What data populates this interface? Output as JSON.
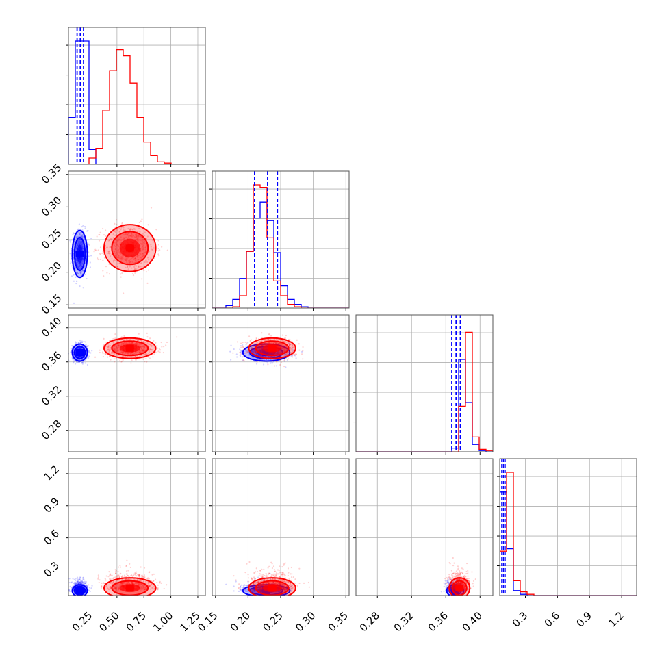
{
  "chart_data": {
    "type": "corner",
    "figure_size_px": 970,
    "colors": {
      "series_a": "#0000ff",
      "series_b": "#ff0000",
      "grid": "#b0b0b0",
      "frame": "#555555"
    },
    "legend": "none",
    "grid": true,
    "params": [
      {
        "range": [
          0.05,
          1.32
        ],
        "ticks": [
          "0.25",
          "0.50",
          "0.75",
          "1.00",
          "1.25"
        ],
        "tick_values": [
          0.25,
          0.5,
          0.75,
          1.0,
          1.25
        ]
      },
      {
        "range": [
          0.145,
          0.355
        ],
        "ticks": [
          "0.15",
          "0.20",
          "0.25",
          "0.30",
          "0.35"
        ],
        "tick_values": [
          0.15,
          0.2,
          0.25,
          0.3,
          0.35
        ]
      },
      {
        "range": [
          0.255,
          0.415
        ],
        "ticks": [
          "0.28",
          "0.32",
          "0.36",
          "0.40"
        ],
        "tick_values": [
          0.28,
          0.32,
          0.36,
          0.4
        ]
      },
      {
        "range": [
          0.06,
          1.34
        ],
        "ticks": [
          "0.3",
          "0.6",
          "0.9",
          "1.2"
        ],
        "tick_values": [
          0.3,
          0.6,
          0.9,
          1.2
        ]
      }
    ],
    "quantiles": {
      "blue": [
        [
          0.13,
          0.16,
          0.19
        ],
        [
          0.21,
          0.23,
          0.245
        ],
        [
          0.367,
          0.372,
          0.377
        ],
        [
          0.08,
          0.095,
          0.11
        ]
      ]
    },
    "series": [
      {
        "name": "",
        "color": "#0000ff",
        "means": [
          0.155,
          0.228,
          0.371,
          0.105
        ],
        "sds": [
          0.035,
          0.018,
          0.005,
          0.035
        ]
      },
      {
        "name": "",
        "color": "#ff0000",
        "means": [
          0.62,
          0.237,
          0.376,
          0.13
        ],
        "sds": [
          0.12,
          0.018,
          0.006,
          0.06
        ]
      }
    ],
    "histograms": [
      {
        "edges_range": [
          0.05,
          1.32
        ],
        "bins": 20,
        "blue": [
          0.38,
          1.0,
          1.0,
          0.12,
          0,
          0,
          0,
          0,
          0,
          0,
          0,
          0,
          0,
          0,
          0,
          0,
          0,
          0,
          0,
          0
        ],
        "red": [
          0,
          0,
          0,
          0.05,
          0.13,
          0.44,
          0.76,
          0.93,
          0.88,
          0.66,
          0.38,
          0.18,
          0.07,
          0.02,
          0.01,
          0,
          0,
          0,
          0,
          0
        ]
      },
      {
        "edges_range": [
          0.145,
          0.355
        ],
        "bins": 20,
        "blue": [
          0,
          0,
          0.02,
          0.07,
          0.24,
          0.46,
          0.73,
          0.86,
          0.71,
          0.45,
          0.18,
          0.07,
          0.03,
          0.01,
          0,
          0,
          0,
          0,
          0,
          0
        ],
        "red": [
          0,
          0,
          0,
          0.01,
          0.1,
          0.46,
          1.0,
          0.98,
          0.57,
          0.22,
          0.1,
          0.03,
          0.01,
          0,
          0,
          0,
          0,
          0,
          0,
          0
        ]
      },
      {
        "edges_range": [
          0.255,
          0.415
        ],
        "bins": 20,
        "blue": [
          0,
          0,
          0,
          0,
          0,
          0,
          0,
          0,
          0,
          0,
          0,
          0,
          0,
          0,
          0.03,
          0.75,
          0.4,
          0.06,
          0.01,
          0
        ],
        "red": [
          0,
          0,
          0,
          0,
          0,
          0,
          0,
          0,
          0,
          0,
          0,
          0,
          0,
          0,
          0,
          0.37,
          0.97,
          0.12,
          0.02,
          0.01
        ]
      },
      {
        "edges_range": [
          0.06,
          1.34
        ],
        "bins": 20,
        "blue": [
          0.84,
          0.38,
          0.04,
          0.01,
          0,
          0,
          0,
          0,
          0,
          0,
          0,
          0,
          0,
          0,
          0,
          0,
          0,
          0,
          0,
          0
        ],
        "red": [
          0.36,
          1.0,
          0.12,
          0.03,
          0.01,
          0,
          0,
          0,
          0,
          0,
          0,
          0,
          0,
          0,
          0,
          0,
          0,
          0,
          0,
          0
        ]
      }
    ]
  }
}
